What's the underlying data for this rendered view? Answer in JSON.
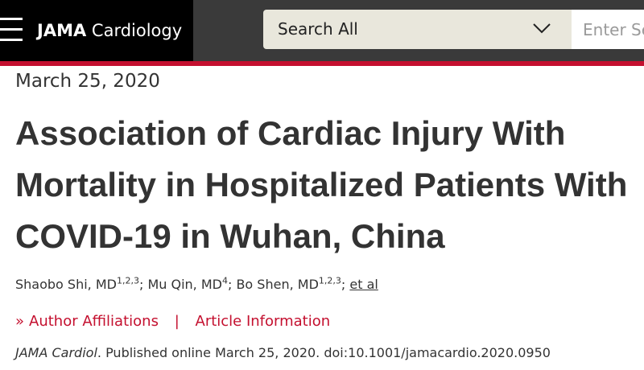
{
  "header": {
    "brand_bold": "JAMA",
    "brand_light": "Cardiology",
    "search_scope": "Search All",
    "search_placeholder": "Enter Search Term"
  },
  "article": {
    "date": "March 25, 2020",
    "title": "Association of Cardiac Injury With Mortality in Hospitalized Patients With COVID-19 in Wuhan, China",
    "authors": [
      {
        "name": "Shaobo Shi, MD",
        "affil": "1,2,3"
      },
      {
        "name": "Mu Qin, MD",
        "affil": "4"
      },
      {
        "name": "Bo Shen, MD",
        "affil": "1,2,3"
      }
    ],
    "et_al": "et al",
    "links": {
      "author_affiliations": "Author Affiliations",
      "separator": "|",
      "article_information": "Article Information"
    },
    "citation": {
      "journal": "JAMA Cardiol",
      "text": ". Published online March 25, 2020. doi:10.1001/jamacardio.2020.0950"
    }
  },
  "colors": {
    "brand_red": "#c4102f",
    "header_bg": "#3a3a3a",
    "search_select_bg": "#e9e7dc"
  },
  "icons": {
    "menu": "hamburger-menu-icon",
    "dropdown": "chevron-down-icon",
    "expand": "double-chevron-right-icon"
  }
}
